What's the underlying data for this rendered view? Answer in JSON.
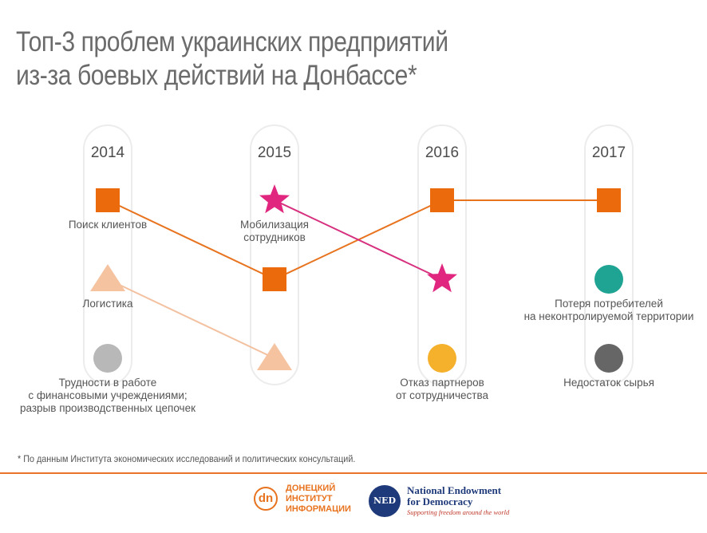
{
  "title": {
    "line1": "Топ-3 проблем украинских предприятий",
    "line2": "из-за боевых действий на Донбассе*"
  },
  "footnote": "* По данным Института экономических исследований и политических консультаций.",
  "logos": {
    "dn_mark": "dn",
    "dn_text": [
      "ДОНЕЦКИЙ",
      "ИНСТИТУТ",
      "ИНФОРМАЦИИ"
    ],
    "ned_mark": "NED",
    "ned_name": [
      "National Endowment",
      "for Democracy"
    ],
    "ned_tagline": "Supporting freedom around the world"
  },
  "colors": {
    "accent": "#e8731f",
    "orange_square": "#ea6a0c",
    "pink_star": "#e0267f",
    "peach_triangle": "#f6c3a0",
    "gray_circle": "#b8b8b8",
    "teal_circle": "#1fa392",
    "yellow_circle": "#f5b02c",
    "dark_circle": "#666666",
    "line_orange": "#e8731f",
    "line_pink": "#d6307e",
    "line_peach": "#f3c1a0"
  },
  "chart_data": {
    "type": "rank-chart",
    "categories": [
      "2014",
      "2015",
      "2016",
      "2017"
    ],
    "ranks": [
      1,
      2,
      3
    ],
    "items": [
      {
        "name": "Поиск клиентов",
        "shape": "square",
        "color_key": "orange_square",
        "line_color_key": "line_orange",
        "points": [
          {
            "year": "2014",
            "rank": 1
          },
          {
            "year": "2015",
            "rank": 2
          },
          {
            "year": "2016",
            "rank": 1
          },
          {
            "year": "2017",
            "rank": 1
          }
        ]
      },
      {
        "name": "Мобилизация сотрудников",
        "shape": "star",
        "color_key": "pink_star",
        "line_color_key": "line_pink",
        "points": [
          {
            "year": "2015",
            "rank": 1
          },
          {
            "year": "2016",
            "rank": 2
          }
        ]
      },
      {
        "name": "Логистика",
        "shape": "triangle",
        "color_key": "peach_triangle",
        "line_color_key": "line_peach",
        "points": [
          {
            "year": "2014",
            "rank": 2
          },
          {
            "year": "2015",
            "rank": 3
          }
        ]
      },
      {
        "name": "Трудности в работе с финансовыми учреждениями; разрыв производственных цепочек",
        "shape": "circle",
        "color_key": "gray_circle",
        "points": [
          {
            "year": "2014",
            "rank": 3
          }
        ]
      },
      {
        "name": "Отказ партнеров от сотрудничества",
        "shape": "circle",
        "color_key": "yellow_circle",
        "points": [
          {
            "year": "2016",
            "rank": 3
          }
        ]
      },
      {
        "name": "Потеря потребителей на неконтролируемой территории",
        "shape": "circle",
        "color_key": "teal_circle",
        "points": [
          {
            "year": "2017",
            "rank": 2
          }
        ]
      },
      {
        "name": "Недостаток сырья",
        "shape": "circle",
        "color_key": "dark_circle",
        "points": [
          {
            "year": "2017",
            "rank": 3
          }
        ]
      }
    ],
    "labels": [
      {
        "year": "2014",
        "rank": 1,
        "lines": [
          "Поиск клиентов"
        ]
      },
      {
        "year": "2014",
        "rank": 2,
        "lines": [
          "Логистика"
        ]
      },
      {
        "year": "2014",
        "rank": 3,
        "lines": [
          "Трудности в работе",
          "с финансовыми учреждениями;",
          "разрыв производственных цепочек"
        ]
      },
      {
        "year": "2015",
        "rank": 1,
        "lines": [
          "Мобилизация",
          "сотрудников"
        ]
      },
      {
        "year": "2016",
        "rank": 3,
        "lines": [
          "Отказ партнеров",
          "от сотрудничества"
        ]
      },
      {
        "year": "2017",
        "rank": 2,
        "lines": [
          "Потеря потребителей",
          "на неконтролируемой территории"
        ]
      },
      {
        "year": "2017",
        "rank": 3,
        "lines": [
          "Недостаток сырья"
        ]
      }
    ]
  }
}
